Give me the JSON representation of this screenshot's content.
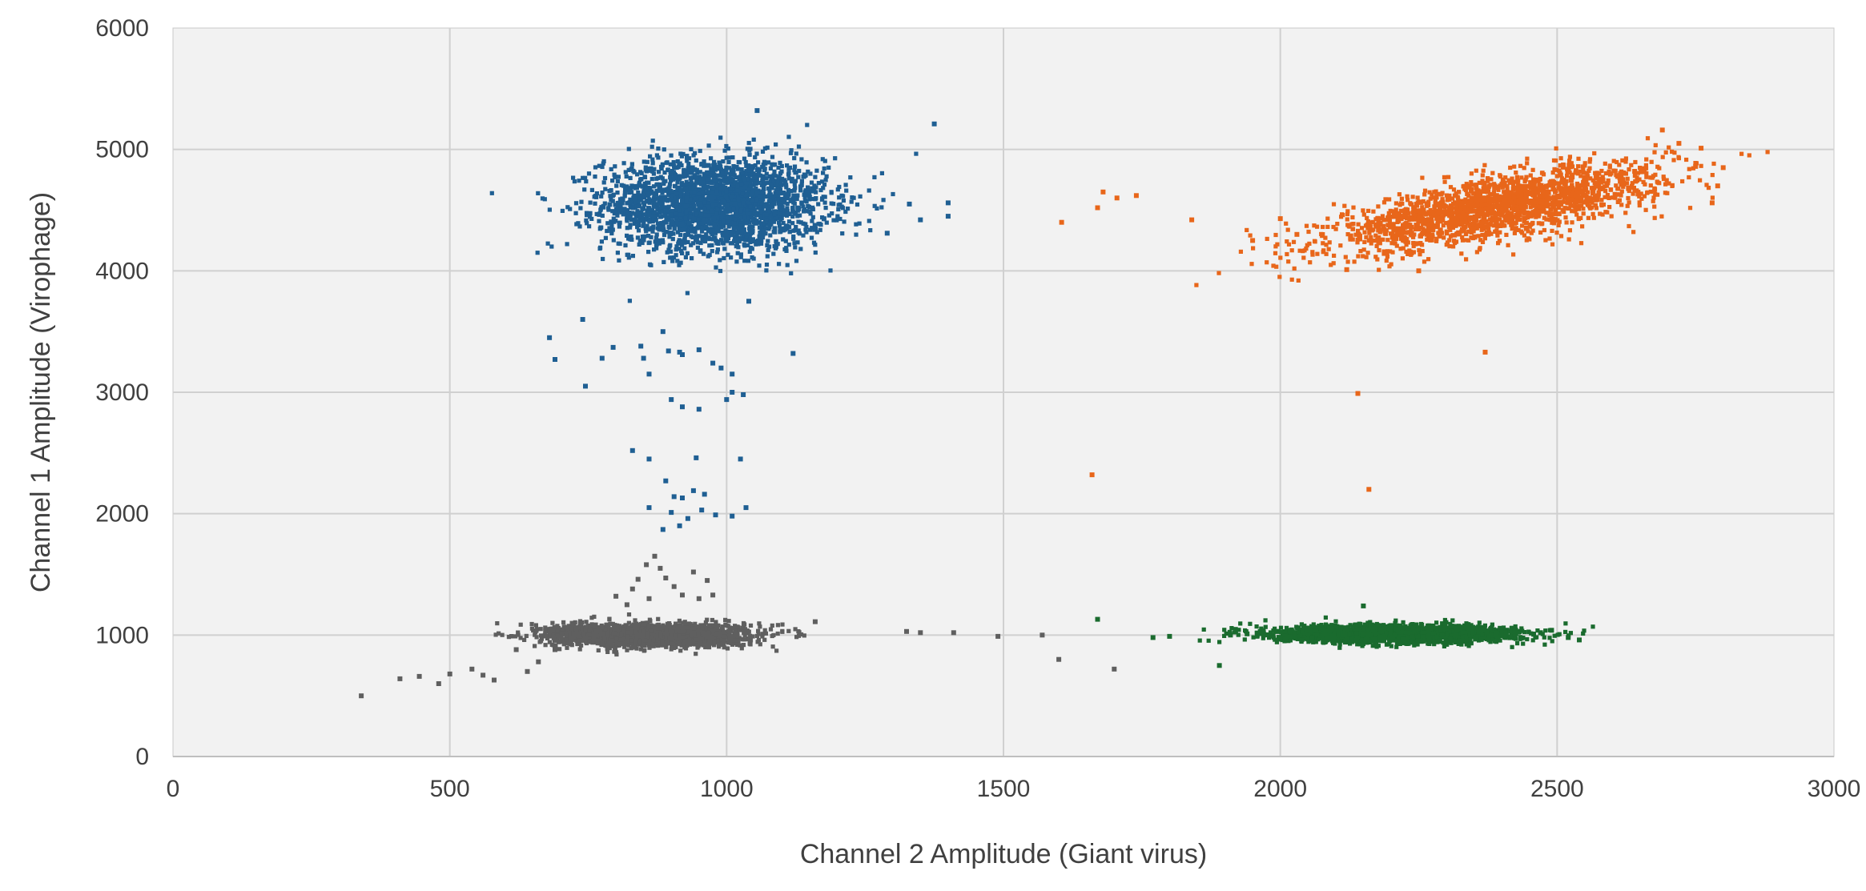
{
  "chart_data": {
    "type": "scatter",
    "title": "",
    "xlabel": "Channel 2 Amplitude (Giant virus)",
    "ylabel": "Channel 1 Amplitude (Virophage)",
    "xlim": [
      0,
      3000
    ],
    "ylim": [
      0,
      6000
    ],
    "x_ticks": [
      "0",
      "500",
      "1000",
      "1500",
      "2000",
      "2500",
      "3000"
    ],
    "y_ticks": [
      "0",
      "1000",
      "2000",
      "3000",
      "4000",
      "5000",
      "6000"
    ],
    "grid": true,
    "legend": "none",
    "plot_background": "#f2f2f2",
    "gridline_color": "#d0d0d0",
    "series": [
      {
        "color": "#1f5f93",
        "cluster": {
          "center": [
            980,
            4550
          ],
          "spread": [
            100,
            190
          ],
          "count": 2600
        },
        "points": [
          [
            1055,
            5320
          ],
          [
            1375,
            5210
          ],
          [
            1330,
            4550
          ],
          [
            1400,
            4560
          ],
          [
            1400,
            4450
          ],
          [
            1350,
            4420
          ],
          [
            1290,
            4310
          ],
          [
            680,
            3450
          ],
          [
            740,
            3600
          ],
          [
            690,
            3270
          ],
          [
            745,
            3050
          ],
          [
            775,
            3280
          ],
          [
            795,
            3370
          ],
          [
            845,
            3380
          ],
          [
            850,
            3280
          ],
          [
            860,
            3150
          ],
          [
            885,
            3500
          ],
          [
            895,
            3340
          ],
          [
            915,
            3330
          ],
          [
            920,
            3310
          ],
          [
            950,
            3350
          ],
          [
            975,
            3240
          ],
          [
            990,
            3200
          ],
          [
            1010,
            3150
          ],
          [
            1040,
            3750
          ],
          [
            1120,
            3320
          ],
          [
            1010,
            3000
          ],
          [
            1030,
            2980
          ],
          [
            1000,
            2940
          ],
          [
            900,
            2940
          ],
          [
            920,
            2880
          ],
          [
            950,
            2860
          ],
          [
            830,
            2520
          ],
          [
            860,
            2450
          ],
          [
            945,
            2460
          ],
          [
            1025,
            2450
          ],
          [
            890,
            2270
          ],
          [
            905,
            2140
          ],
          [
            920,
            2130
          ],
          [
            940,
            2190
          ],
          [
            960,
            2160
          ],
          [
            860,
            2050
          ],
          [
            900,
            2010
          ],
          [
            930,
            1960
          ],
          [
            955,
            2030
          ],
          [
            980,
            1990
          ],
          [
            1010,
            1980
          ],
          [
            885,
            1870
          ],
          [
            915,
            1900
          ],
          [
            1035,
            2050
          ]
        ]
      },
      {
        "color": "#e8661a",
        "cluster": {
          "center": [
            2390,
            4520
          ],
          "spread": [
            150,
            120
          ],
          "count": 2000,
          "slope": 0.85
        },
        "points": [
          [
            2690,
            5160
          ],
          [
            2720,
            5050
          ],
          [
            2760,
            5010
          ],
          [
            2750,
            4860
          ],
          [
            2790,
            4700
          ],
          [
            2780,
            4560
          ],
          [
            2800,
            4850
          ],
          [
            2640,
            4820
          ],
          [
            1680,
            4650
          ],
          [
            1705,
            4600
          ],
          [
            1740,
            4620
          ],
          [
            1670,
            4520
          ],
          [
            1605,
            4400
          ],
          [
            1840,
            4420
          ],
          [
            1950,
            4250
          ],
          [
            2000,
            4430
          ],
          [
            2030,
            4300
          ],
          [
            2120,
            4010
          ],
          [
            2250,
            4000
          ],
          [
            2370,
            3330
          ],
          [
            2140,
            2990
          ],
          [
            1660,
            2320
          ],
          [
            2160,
            2200
          ]
        ]
      },
      {
        "color": "#5f5f5f",
        "cluster": {
          "center": [
            860,
            1000
          ],
          "spread": [
            85,
            45
          ],
          "count": 2400
        },
        "points": [
          [
            340,
            500
          ],
          [
            410,
            640
          ],
          [
            445,
            660
          ],
          [
            480,
            600
          ],
          [
            500,
            680
          ],
          [
            540,
            720
          ],
          [
            560,
            670
          ],
          [
            580,
            630
          ],
          [
            620,
            880
          ],
          [
            640,
            700
          ],
          [
            660,
            780
          ],
          [
            690,
            880
          ],
          [
            1160,
            1110
          ],
          [
            1325,
            1030
          ],
          [
            1350,
            1020
          ],
          [
            1410,
            1020
          ],
          [
            1490,
            990
          ],
          [
            1570,
            1000
          ],
          [
            1600,
            800
          ],
          [
            1700,
            720
          ],
          [
            800,
            1320
          ],
          [
            830,
            1380
          ],
          [
            840,
            1460
          ],
          [
            855,
            1580
          ],
          [
            870,
            1650
          ],
          [
            880,
            1550
          ],
          [
            890,
            1470
          ],
          [
            905,
            1400
          ],
          [
            920,
            1330
          ],
          [
            940,
            1520
          ],
          [
            950,
            1300
          ],
          [
            965,
            1450
          ],
          [
            975,
            1330
          ],
          [
            860,
            1300
          ],
          [
            820,
            1250
          ]
        ]
      },
      {
        "color": "#1a6b2e",
        "cluster": {
          "center": [
            2210,
            1010
          ],
          "spread": [
            110,
            35
          ],
          "count": 2300
        },
        "points": [
          [
            1670,
            1130
          ],
          [
            1770,
            980
          ],
          [
            1800,
            990
          ],
          [
            1890,
            750
          ],
          [
            1910,
            1000
          ],
          [
            1940,
            1010
          ],
          [
            1970,
            1000
          ],
          [
            2150,
            1240
          ],
          [
            2520,
            980
          ],
          [
            2540,
            960
          ],
          [
            2490,
            1040
          ],
          [
            2470,
            1020
          ]
        ]
      }
    ]
  }
}
